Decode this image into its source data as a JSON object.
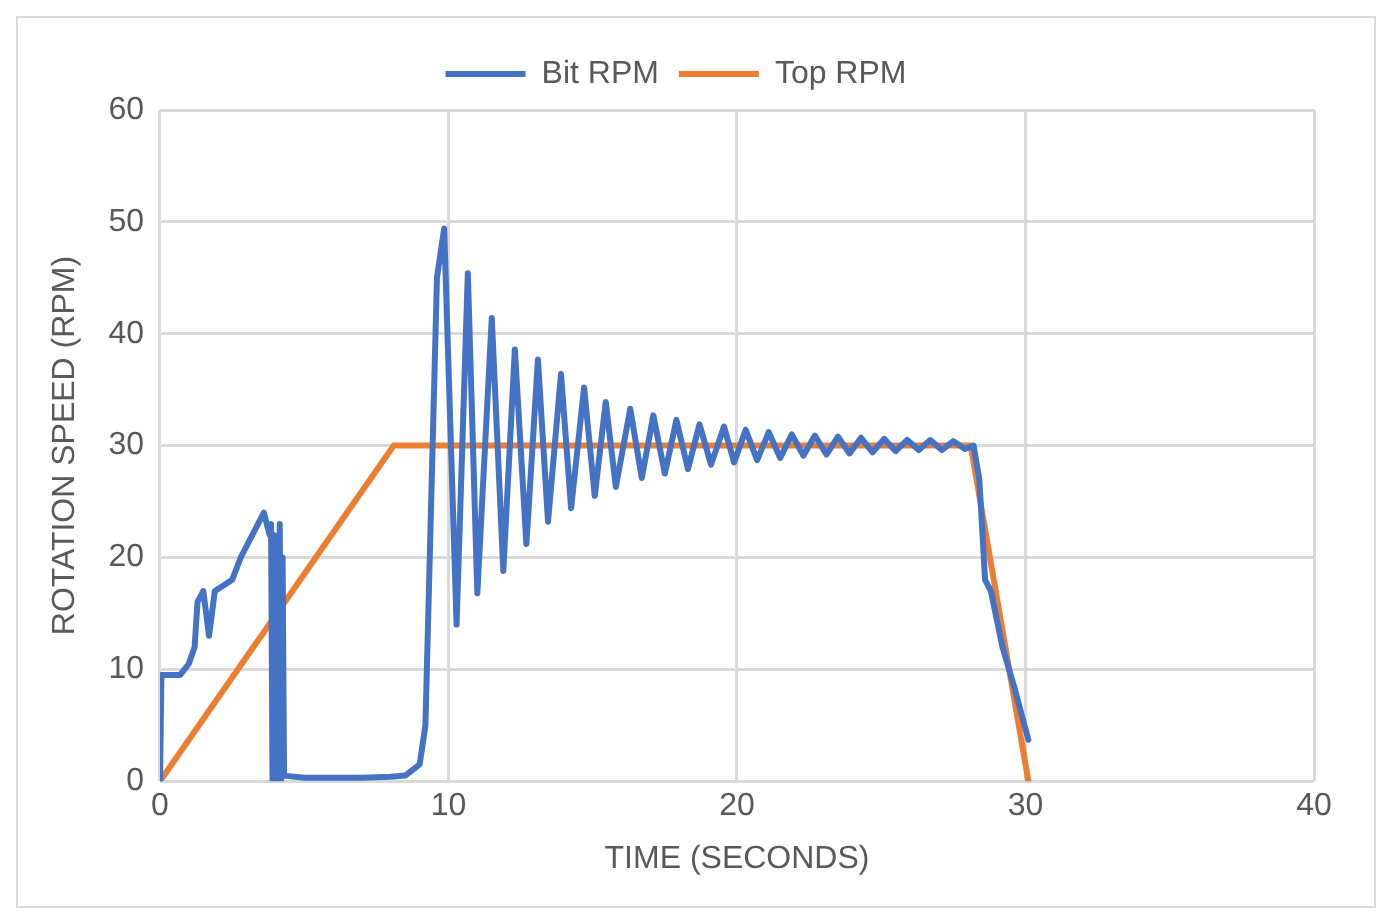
{
  "chart_data": {
    "type": "line",
    "xlabel": "TIME (SECONDS)",
    "ylabel": "ROTATION SPEED (RPM)",
    "xlim": [
      0,
      40
    ],
    "xticks": [
      0,
      10,
      20,
      30,
      40
    ],
    "ylim": [
      0,
      60
    ],
    "yticks": [
      0,
      10,
      20,
      30,
      40,
      50,
      60
    ],
    "grid": true,
    "legend": "top",
    "marker": "none",
    "line_style": "solid",
    "series": [
      {
        "name": "Bit RPM",
        "color": "#4472c4",
        "x": [
          0,
          0.05,
          0.7,
          1,
          1.2,
          1.3,
          1.5,
          1.7,
          1.9,
          2.2,
          2.5,
          2.8,
          3.1,
          3.4,
          3.6,
          3.8,
          3.85,
          3.9,
          3.95,
          4,
          4.05,
          4.1,
          4.15,
          4.2,
          4.25,
          4.3,
          5,
          6,
          7,
          8,
          8.5,
          9,
          9.2,
          9.4,
          9.6,
          9.85,
          10.28,
          10.67,
          11,
          11.5,
          11.9,
          12.3,
          12.7,
          13.1,
          13.45,
          13.9,
          14.25,
          14.7,
          15.07,
          15.45,
          15.8,
          16.3,
          16.7,
          17.1,
          17.5,
          17.9,
          18.3,
          18.7,
          19.1,
          19.55,
          19.9,
          20.3,
          20.7,
          21.1,
          21.5,
          21.9,
          22.3,
          22.7,
          23.1,
          23.5,
          23.9,
          24.3,
          24.7,
          25.1,
          25.5,
          25.9,
          26.3,
          26.7,
          27.1,
          27.5,
          27.9,
          28.2,
          28.4,
          28.6,
          28.8,
          29.2,
          29.6,
          30.1
        ],
        "values": [
          0,
          9.5,
          9.5,
          10.5,
          12,
          16,
          17,
          13,
          17,
          17.5,
          18,
          20,
          21.5,
          23,
          24,
          22,
          23,
          0,
          22,
          0,
          21,
          0,
          23,
          0,
          20,
          0.5,
          0.3,
          0.3,
          0.3,
          0.4,
          0.5,
          1.5,
          5,
          25,
          45,
          49.4,
          14,
          45.4,
          16.8,
          41.4,
          18.8,
          38.6,
          21.2,
          37.7,
          23.2,
          36.4,
          24.4,
          35.2,
          25.5,
          33.9,
          26.3,
          33.3,
          27.1,
          32.7,
          27.5,
          32.3,
          27.9,
          31.9,
          28.3,
          31.7,
          28.5,
          31.4,
          28.7,
          31.2,
          28.9,
          31,
          29.1,
          30.9,
          29.2,
          30.8,
          29.3,
          30.7,
          29.4,
          30.6,
          29.5,
          30.5,
          29.6,
          30.5,
          29.6,
          30.4,
          29.7,
          30,
          27,
          18,
          17,
          12,
          8.5,
          3.7
        ]
      },
      {
        "name": "Top RPM",
        "color": "#ed7d31",
        "x": [
          0,
          8.1,
          28.1,
          30.1
        ],
        "values": [
          0,
          30,
          30,
          0
        ]
      }
    ]
  }
}
